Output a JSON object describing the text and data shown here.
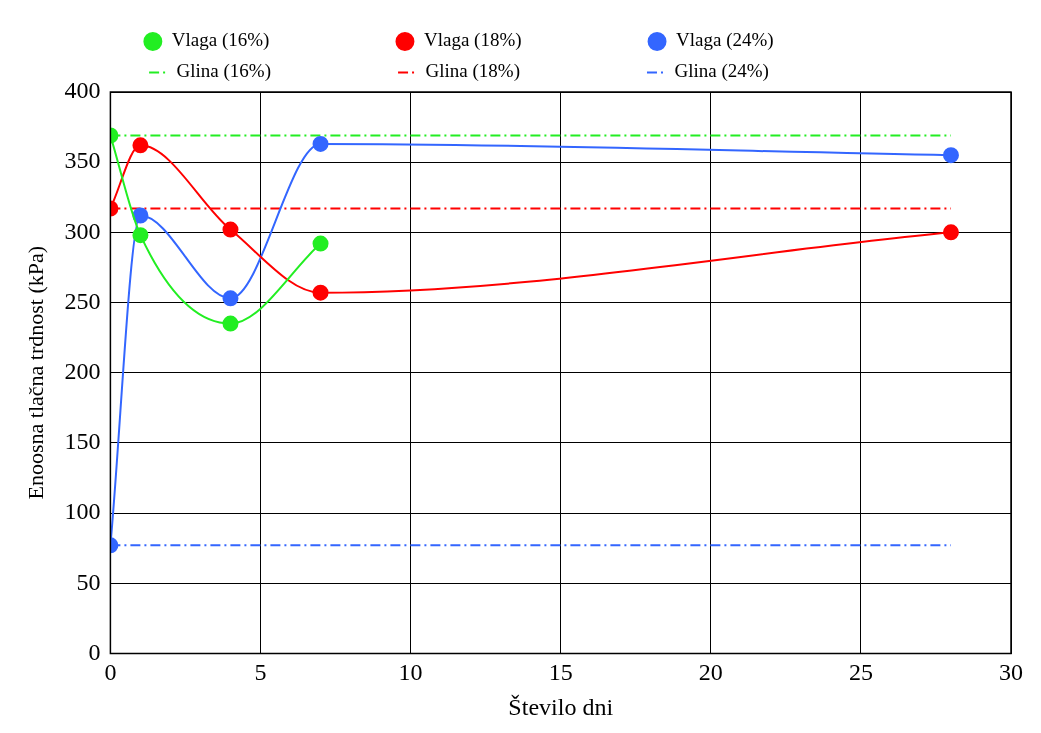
{
  "chart_data": {
    "type": "line",
    "xlabel": "Število dni",
    "ylabel": "Enoosna tlačna trdnost (kPa)",
    "series": [
      {
        "name": "Vlaga (16%)",
        "color": "#22ee22",
        "x": [
          0,
          1,
          4,
          7
        ],
        "values": [
          369,
          298,
          235,
          292
        ],
        "marker": "circle",
        "line_style": "solid"
      },
      {
        "name": "Vlaga (18%)",
        "color": "#ff0000",
        "x": [
          0,
          1,
          4,
          7,
          28
        ],
        "values": [
          317,
          362,
          302,
          257,
          300
        ],
        "marker": "circle",
        "line_style": "solid"
      },
      {
        "name": "Vlaga (24%)",
        "color": "#3366ff",
        "x": [
          0,
          1,
          4,
          7,
          28
        ],
        "values": [
          77,
          312,
          253,
          363,
          355
        ],
        "marker": "circle",
        "line_style": "solid"
      },
      {
        "name": "Glina (16%)",
        "color": "#22ee22",
        "x": [
          0,
          28
        ],
        "values": [
          369,
          369
        ],
        "marker": "none",
        "line_style": "dashed"
      },
      {
        "name": "Glina (18%)",
        "color": "#ff0000",
        "x": [
          0,
          28
        ],
        "values": [
          317,
          317
        ],
        "marker": "none",
        "line_style": "dashed"
      },
      {
        "name": "Glina (24%)",
        "color": "#3366ff",
        "x": [
          0,
          28
        ],
        "values": [
          77,
          77
        ],
        "marker": "none",
        "line_style": "dashed"
      }
    ],
    "xlim": [
      0,
      30
    ],
    "xticks": [
      0,
      5,
      10,
      15,
      20,
      25,
      30
    ],
    "ylim": [
      0,
      400
    ],
    "yticks": [
      0,
      50,
      100,
      150,
      200,
      250,
      300,
      350,
      400
    ],
    "grid": true,
    "legend": "top"
  }
}
